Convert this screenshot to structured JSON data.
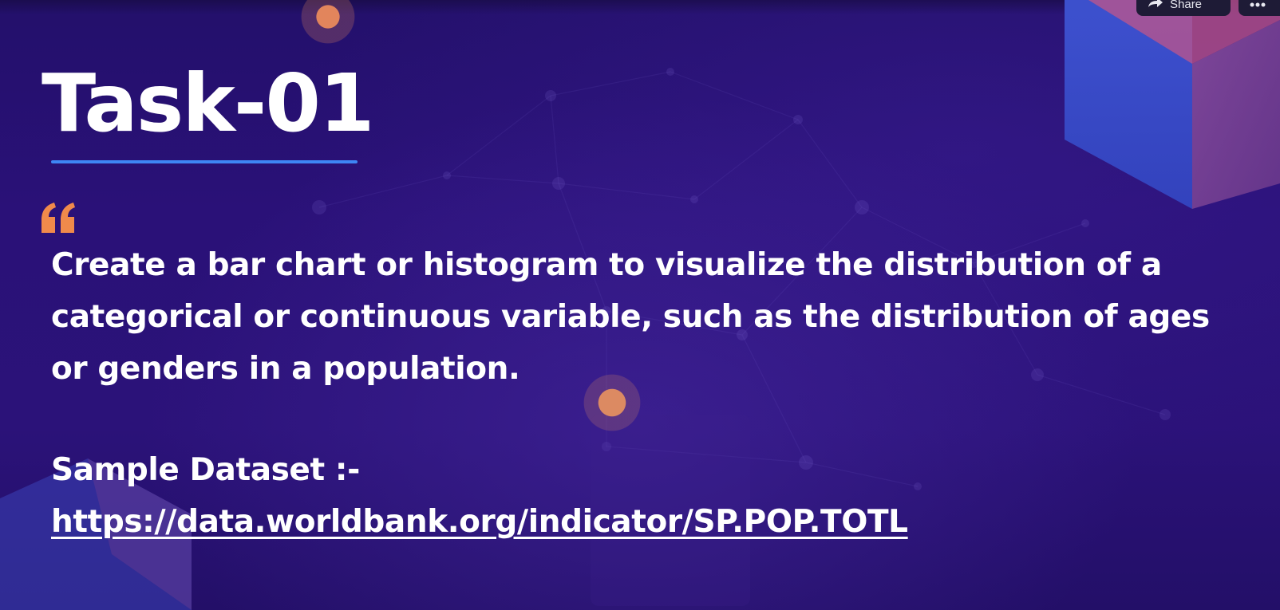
{
  "slide": {
    "title": "Task-01",
    "description": "Create a bar chart or histogram to visualize the distribution of a categorical or continuous variable, such as the distribution of ages or genders in a population.",
    "dataset_label": "Sample Dataset :-",
    "dataset_url": "https://data.worldbank.org/indicator/SP.POP.TOTL"
  },
  "toolbar": {
    "share_label": "Share",
    "share_icon": "share-arrow-icon",
    "more_icon": "more-icon"
  },
  "colors": {
    "background": "#2a1178",
    "accent_underline": "#3e86f5",
    "quote_mark": "#f08a4b",
    "text": "#ffffff"
  }
}
